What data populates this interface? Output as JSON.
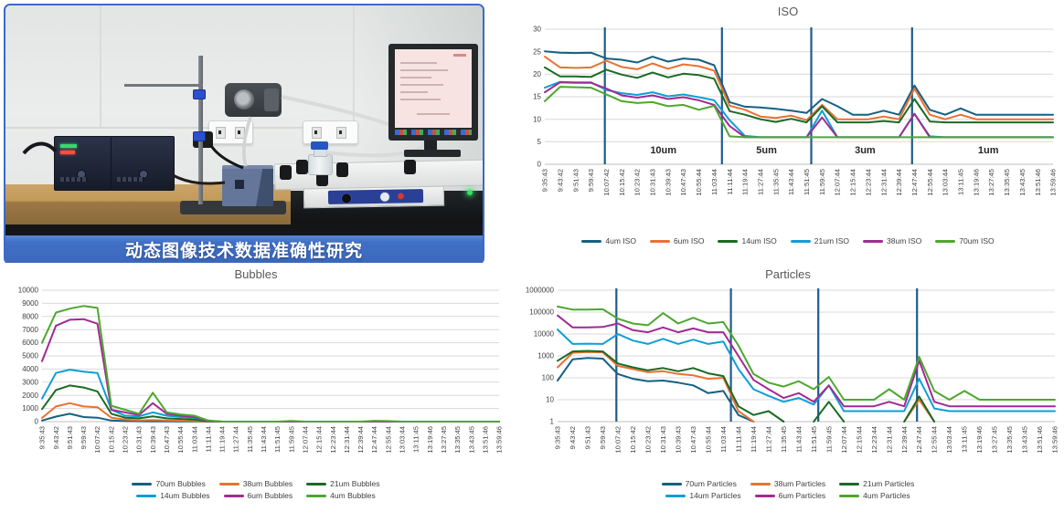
{
  "photo": {
    "caption": "动态图像技术数据准确性研究",
    "caption_bg": "#4070c6"
  },
  "chart_style": {
    "grid_color": "#d9d9d9",
    "axis_color": "#bfbfbf",
    "tick_text_color": "#404040",
    "title_color": "#595959",
    "divider_color": "#1F5C8B"
  },
  "chart_data": [
    {
      "id": "iso",
      "type": "line",
      "title": "ISO",
      "y_scale": "linear",
      "ylim": [
        0,
        30
      ],
      "y_ticks": [
        0,
        5,
        10,
        15,
        20,
        25,
        30
      ],
      "x_labels": [
        "9:35:43",
        "9:43:42",
        "9:51:43",
        "9:59:43",
        "10:07:42",
        "10:15:42",
        "10:23:42",
        "10:31:43",
        "10:39:43",
        "10:47:43",
        "10:55:44",
        "11:03:44",
        "11:11:44",
        "11:19:44",
        "11:27:44",
        "11:35:45",
        "11:43:44",
        "11:51:45",
        "11:59:45",
        "12:07:44",
        "12:15:44",
        "12:23:44",
        "12:31:44",
        "12:39:44",
        "12:47:44",
        "12:55:44",
        "13:03:44",
        "13:11:45",
        "13:19:46",
        "13:27:45",
        "13:35:45",
        "13:43:45",
        "13:51:46",
        "13:59:46"
      ],
      "vlines": [
        3.9,
        11.5,
        17.3,
        23.85
      ],
      "region_labels": [
        {
          "label": "10um",
          "x": 7.7,
          "y": 3
        },
        {
          "label": "5um",
          "x": 14.4,
          "y": 3
        },
        {
          "label": "3um",
          "x": 20.8,
          "y": 3
        },
        {
          "label": "1um",
          "x": 28.8,
          "y": 3
        }
      ],
      "legend_position": "bottom",
      "legend_rows_of": 6,
      "series": [
        {
          "name": "4um ISO",
          "color": "#156082",
          "values": [
            25.1,
            24.8,
            24.7,
            24.8,
            23.5,
            23.2,
            22.6,
            23.9,
            22.8,
            23.5,
            23.2,
            22.0,
            13.8,
            12.8,
            12.6,
            12.3,
            11.9,
            11.4,
            14.5,
            12.9,
            11.0,
            11.0,
            11.9,
            11.0,
            17.5,
            12.1,
            11.0,
            12.4,
            11.0,
            11.0,
            11.0,
            11.0,
            11.0,
            11.0
          ]
        },
        {
          "name": "6um ISO",
          "color": "#E97132",
          "values": [
            23.9,
            21.5,
            21.4,
            21.5,
            23.0,
            21.6,
            21.1,
            22.4,
            21.2,
            22.2,
            21.8,
            20.8,
            13.0,
            12.1,
            10.6,
            10.3,
            10.8,
            9.8,
            13.2,
            10.0,
            10.0,
            10.0,
            10.6,
            10.0,
            16.8,
            11.0,
            10.0,
            11.0,
            10.0,
            10.0,
            10.0,
            10.0,
            10.0,
            10.0
          ]
        },
        {
          "name": "14um ISO",
          "color": "#196B24",
          "values": [
            21.5,
            19.5,
            19.5,
            19.4,
            21.0,
            19.9,
            19.2,
            20.4,
            19.3,
            20.1,
            19.8,
            19.0,
            11.8,
            11.0,
            10.0,
            9.4,
            10.1,
            9.3,
            12.9,
            9.3,
            9.3,
            9.3,
            9.6,
            9.3,
            14.5,
            9.5,
            9.3,
            9.3,
            9.3,
            9.3,
            9.3,
            9.3,
            9.3,
            9.3
          ]
        },
        {
          "name": "21um ISO",
          "color": "#0F9ED5",
          "values": [
            17.0,
            18.3,
            18.2,
            18.2,
            16.5,
            15.8,
            15.4,
            16.0,
            15.1,
            15.5,
            14.9,
            14.2,
            9.8,
            6.3,
            6.0,
            6.0,
            6.0,
            6.0,
            11.9,
            6.0,
            6.0,
            6.0,
            6.0,
            6.0,
            11.2,
            6.2,
            6.0,
            6.0,
            6.0,
            6.0,
            6.0,
            6.0,
            6.0,
            6.0
          ]
        },
        {
          "name": "38um ISO",
          "color": "#A02B93",
          "values": [
            16.0,
            18.2,
            18.1,
            18.1,
            16.8,
            15.3,
            14.8,
            15.3,
            14.5,
            14.9,
            14.2,
            13.2,
            8.5,
            6.0,
            6.0,
            6.0,
            6.0,
            6.0,
            10.4,
            6.0,
            6.0,
            6.0,
            6.0,
            6.0,
            11.2,
            6.0,
            6.0,
            6.0,
            6.0,
            6.0,
            6.0,
            6.0,
            6.0,
            6.0
          ]
        },
        {
          "name": "70um ISO",
          "color": "#4EA72E",
          "values": [
            14.0,
            17.2,
            17.1,
            17.0,
            15.5,
            14.0,
            13.6,
            13.8,
            12.9,
            13.2,
            12.1,
            13.0,
            6.2,
            6.0,
            6.0,
            6.0,
            6.0,
            6.0,
            6.0,
            6.0,
            6.0,
            6.0,
            6.0,
            6.0,
            6.0,
            6.0,
            6.0,
            6.0,
            6.0,
            6.0,
            6.0,
            6.0,
            6.0,
            6.0
          ]
        }
      ]
    },
    {
      "id": "bubbles",
      "type": "line",
      "title": "Bubbles",
      "y_scale": "linear",
      "ylim": [
        0,
        10000
      ],
      "y_ticks": [
        0,
        1000,
        2000,
        3000,
        4000,
        5000,
        6000,
        7000,
        8000,
        9000,
        10000
      ],
      "x_labels": [
        "9:35:43",
        "9:43:42",
        "9:51:43",
        "9:59:43",
        "10:07:42",
        "10:15:42",
        "10:23:42",
        "10:31:43",
        "10:39:43",
        "10:47:43",
        "10:55:44",
        "11:03:44",
        "11:11:44",
        "11:19:44",
        "11:27:44",
        "11:35:45",
        "11:43:44",
        "11:51:45",
        "11:59:45",
        "12:07:44",
        "12:15:44",
        "12:23:44",
        "12:31:44",
        "12:39:44",
        "12:47:44",
        "12:55:44",
        "13:03:44",
        "13:11:45",
        "13:19:46",
        "13:27:45",
        "13:35:45",
        "13:43:45",
        "13:51:46",
        "13:59:46"
      ],
      "vlines": [],
      "region_labels": [],
      "legend_position": "bottom",
      "legend_rows_of": 3,
      "series": [
        {
          "name": "70um Bubbles",
          "color": "#156082",
          "values": [
            80,
            380,
            600,
            350,
            300,
            80,
            40,
            30,
            20,
            15,
            10,
            5,
            0,
            0,
            0,
            0,
            0,
            0,
            0,
            0,
            0,
            0,
            0,
            0,
            0,
            0,
            0,
            0,
            0,
            0,
            0,
            0,
            0,
            0
          ]
        },
        {
          "name": "38um Bubbles",
          "color": "#E97132",
          "values": [
            280,
            1150,
            1400,
            1150,
            1100,
            300,
            150,
            100,
            120,
            80,
            60,
            40,
            10,
            0,
            0,
            0,
            0,
            0,
            0,
            0,
            0,
            0,
            0,
            0,
            0,
            0,
            0,
            0,
            0,
            0,
            0,
            0,
            0,
            0
          ]
        },
        {
          "name": "21um Bubbles",
          "color": "#196B24",
          "values": [
            950,
            2400,
            2750,
            2600,
            2300,
            600,
            300,
            250,
            400,
            250,
            200,
            150,
            30,
            0,
            0,
            0,
            0,
            0,
            0,
            0,
            0,
            0,
            0,
            0,
            0,
            0,
            0,
            0,
            0,
            0,
            0,
            0,
            0,
            0
          ]
        },
        {
          "name": "14um Bubbles",
          "color": "#0F9ED5",
          "values": [
            1750,
            3700,
            3950,
            3800,
            3700,
            900,
            450,
            400,
            700,
            450,
            350,
            300,
            50,
            0,
            0,
            0,
            0,
            0,
            0,
            0,
            0,
            0,
            0,
            0,
            0,
            0,
            0,
            0,
            0,
            0,
            0,
            0,
            0,
            0
          ]
        },
        {
          "name": "6um Bubbles",
          "color": "#A02B93",
          "values": [
            4600,
            7300,
            7750,
            7800,
            7450,
            900,
            700,
            500,
            1400,
            600,
            450,
            350,
            60,
            0,
            0,
            0,
            0,
            0,
            0,
            0,
            0,
            0,
            0,
            0,
            0,
            0,
            0,
            0,
            0,
            0,
            0,
            0,
            0,
            0
          ]
        },
        {
          "name": "4um Bubbles",
          "color": "#4EA72E",
          "values": [
            6000,
            8300,
            8600,
            8800,
            8650,
            1200,
            900,
            600,
            2200,
            700,
            550,
            450,
            80,
            0,
            0,
            0,
            0,
            0,
            50,
            0,
            0,
            0,
            0,
            0,
            60,
            40,
            0,
            0,
            0,
            0,
            0,
            0,
            0,
            0
          ]
        }
      ]
    },
    {
      "id": "particles",
      "type": "line",
      "title": "Particles",
      "y_scale": "log",
      "ylim": [
        1,
        1000000
      ],
      "y_ticks": [
        1,
        10,
        100,
        1000,
        10000,
        100000,
        1000000
      ],
      "x_labels": [
        "9:35:43",
        "9:43:42",
        "9:51:43",
        "9:59:43",
        "10:07:42",
        "10:15:42",
        "10:23:42",
        "10:31:43",
        "10:39:43",
        "10:47:43",
        "10:55:44",
        "11:03:44",
        "11:11:44",
        "11:19:44",
        "11:27:44",
        "11:35:45",
        "11:43:44",
        "11:51:45",
        "11:59:45",
        "12:07:44",
        "12:15:44",
        "12:23:44",
        "12:31:44",
        "12:39:44",
        "12:47:44",
        "12:55:44",
        "13:03:44",
        "13:11:45",
        "13:19:46",
        "13:27:45",
        "13:35:45",
        "13:43:45",
        "13:51:46",
        "13:59:46"
      ],
      "vlines": [
        3.9,
        11.5,
        17.3,
        23.85
      ],
      "region_labels": [],
      "legend_position": "bottom",
      "legend_rows_of": 3,
      "series": [
        {
          "name": "70um Particles",
          "color": "#156082",
          "values": [
            75,
            700,
            800,
            750,
            150,
            90,
            70,
            75,
            60,
            45,
            20,
            25,
            2,
            0.9,
            null,
            null,
            null,
            null,
            null,
            null,
            null,
            null,
            null,
            null,
            null,
            null,
            null,
            null,
            null,
            null,
            null,
            null,
            null,
            null
          ]
        },
        {
          "name": "38um Particles",
          "color": "#E97132",
          "values": [
            300,
            1400,
            1500,
            1450,
            350,
            250,
            180,
            200,
            150,
            130,
            90,
            100,
            3,
            1,
            null,
            null,
            null,
            null,
            null,
            null,
            null,
            null,
            null,
            1,
            10,
            1,
            null,
            null,
            null,
            null,
            null,
            null,
            null,
            null
          ]
        },
        {
          "name": "21um Particles",
          "color": "#196B24",
          "values": [
            600,
            1600,
            1700,
            1600,
            450,
            300,
            220,
            280,
            200,
            280,
            160,
            120,
            5,
            2,
            3,
            1,
            null,
            1,
            8,
            1,
            null,
            null,
            null,
            1,
            14,
            1,
            null,
            null,
            null,
            null,
            null,
            null,
            null,
            null
          ]
        },
        {
          "name": "14um Particles",
          "color": "#0F9ED5",
          "values": [
            16000,
            3500,
            3600,
            3500,
            10000,
            5000,
            3500,
            6000,
            3500,
            5500,
            3500,
            4500,
            250,
            30,
            15,
            8,
            12,
            6,
            45,
            3,
            3,
            3,
            3,
            3,
            90,
            4,
            3,
            3,
            3,
            3,
            3,
            3,
            3,
            3
          ]
        },
        {
          "name": "6um Particles",
          "color": "#A02B93",
          "values": [
            70000,
            20000,
            20000,
            21000,
            30000,
            15000,
            12000,
            20000,
            12000,
            18000,
            12000,
            12000,
            1000,
            80,
            30,
            12,
            20,
            8,
            45,
            5,
            5,
            5,
            8,
            5,
            600,
            8,
            5,
            5,
            5,
            5,
            5,
            5,
            5,
            5
          ]
        },
        {
          "name": "4um Particles",
          "color": "#4EA72E",
          "values": [
            180000,
            130000,
            130000,
            135000,
            50000,
            30000,
            25000,
            90000,
            30000,
            55000,
            30000,
            35000,
            3000,
            150,
            60,
            40,
            70,
            30,
            110,
            10,
            10,
            10,
            30,
            10,
            900,
            25,
            10,
            25,
            10,
            10,
            10,
            10,
            10,
            10
          ]
        }
      ]
    }
  ]
}
